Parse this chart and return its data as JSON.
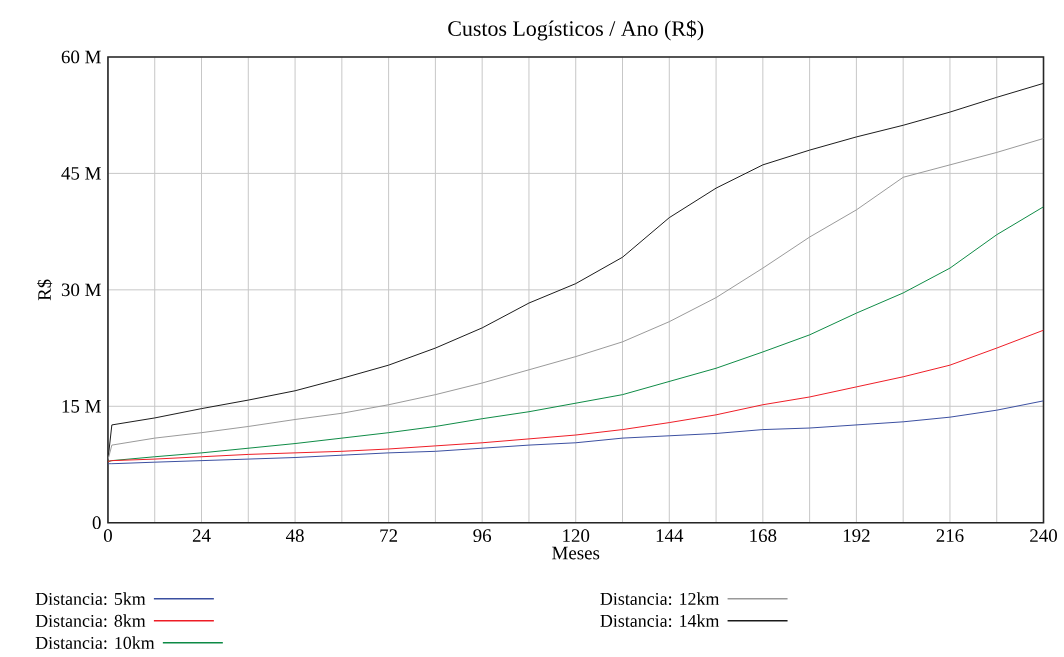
{
  "chart_data": {
    "type": "line",
    "title": "Custos Logísticos / Ano (R$)",
    "xlabel": "Meses",
    "ylabel": "R$",
    "x": [
      0,
      1,
      12,
      24,
      36,
      48,
      60,
      72,
      84,
      96,
      108,
      120,
      132,
      144,
      156,
      168,
      180,
      192,
      204,
      216,
      228,
      240
    ],
    "series": [
      {
        "name": "Distancia: 5km",
        "color": "#3a4fa0",
        "values": [
          7.6,
          7.6,
          7.8,
          8.0,
          8.2,
          8.4,
          8.7,
          9.0,
          9.2,
          9.6,
          10.0,
          10.3,
          10.9,
          11.2,
          11.5,
          12.0,
          12.2,
          12.6,
          13.0,
          13.6,
          14.5,
          15.7
        ]
      },
      {
        "name": "Distancia: 8km",
        "color": "#ee1c25",
        "values": [
          7.9,
          8.0,
          8.2,
          8.5,
          8.8,
          9.0,
          9.2,
          9.5,
          9.9,
          10.3,
          10.8,
          11.3,
          12.0,
          12.9,
          13.9,
          15.2,
          16.2,
          17.5,
          18.8,
          20.3,
          22.5,
          24.8
        ]
      },
      {
        "name": "Distancia: 10km",
        "color": "#0d8a45",
        "values": [
          7.9,
          8.0,
          8.5,
          9.0,
          9.6,
          10.2,
          10.9,
          11.6,
          12.4,
          13.4,
          14.3,
          15.4,
          16.5,
          18.2,
          19.9,
          22.0,
          24.2,
          27.0,
          29.6,
          32.8,
          37.1,
          40.7
        ]
      },
      {
        "name": "Distancia: 12km",
        "color": "#999999",
        "values": [
          8.1,
          10.0,
          10.9,
          11.6,
          12.4,
          13.3,
          14.1,
          15.2,
          16.5,
          18.0,
          19.7,
          21.4,
          23.3,
          25.9,
          29.0,
          32.8,
          36.8,
          40.3,
          44.5,
          46.1,
          47.7,
          49.5
        ]
      },
      {
        "name": "Distancia: 14km",
        "color": "#1a1a1a",
        "values": [
          8.1,
          12.6,
          13.5,
          14.7,
          15.8,
          17.0,
          18.6,
          20.3,
          22.5,
          25.1,
          28.3,
          30.8,
          34.2,
          39.3,
          43.1,
          46.1,
          48.0,
          49.7,
          51.2,
          52.9,
          54.8,
          56.6
        ]
      }
    ],
    "xlim": [
      0,
      240
    ],
    "xticks": [
      0,
      {
        "value": 12,
        "label": null
      },
      24,
      {
        "value": 36,
        "label": null
      },
      48,
      {
        "value": 60,
        "label": null
      },
      72,
      {
        "value": 84,
        "label": null
      },
      96,
      {
        "value": 108,
        "label": null
      },
      120,
      {
        "value": 132,
        "label": null
      },
      144,
      {
        "value": 156,
        "label": null
      },
      168,
      {
        "value": 180,
        "label": null
      },
      192,
      {
        "value": 204,
        "label": null
      },
      216,
      {
        "value": 228,
        "label": null
      },
      240
    ],
    "ylim": [
      0,
      60
    ],
    "yticks": [
      0,
      {
        "value": 15,
        "label": "15 M"
      },
      {
        "value": 30,
        "label": "30 M"
      },
      {
        "value": 45,
        "label": "45 M"
      },
      {
        "value": 60,
        "label": "60 M"
      }
    ],
    "grid": true,
    "legend": "bottom"
  }
}
